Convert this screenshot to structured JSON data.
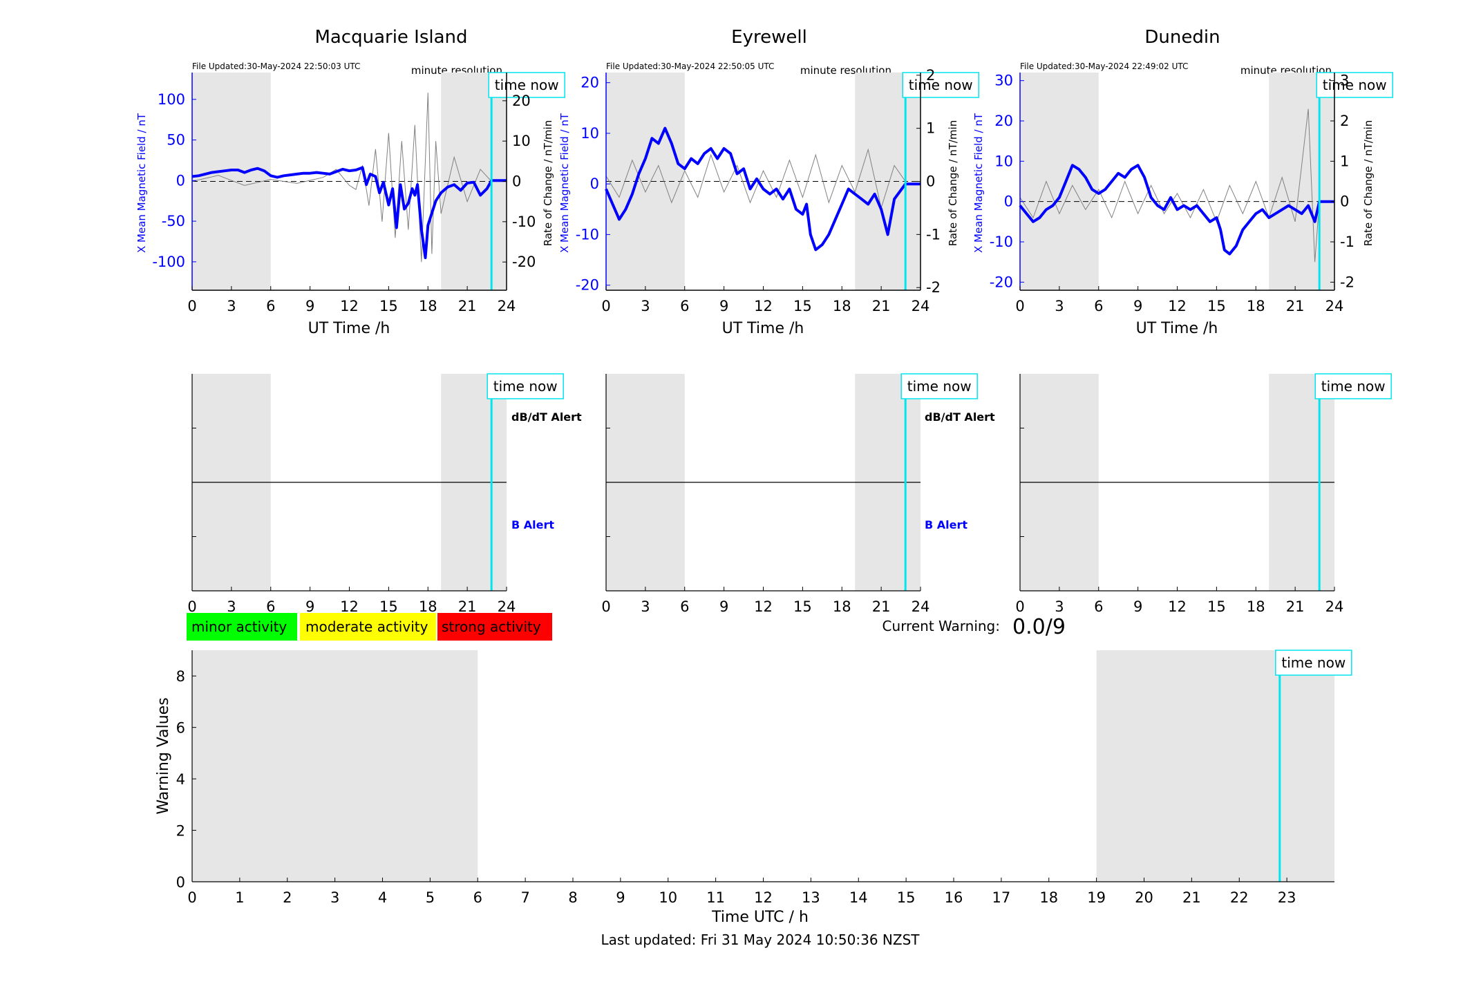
{
  "colors": {
    "left_axis": "#0000ff",
    "rate_series": "#808080",
    "field_series": "#0000ff",
    "time_now": "#00e5ee",
    "night_shade": "#e6e6e6",
    "minor": "#00ff00",
    "moderate": "#ffff00",
    "strong": "#ff0000"
  },
  "stations": [
    {
      "title": "Macquarie Island",
      "file_updated": "File Updated:30-May-2024 22:50:03 UTC",
      "resolution": "minute resolution",
      "time_now_label": "time now",
      "dbdt_alert_label": "dB/dT Alert",
      "b_alert_label": "B Alert"
    },
    {
      "title": "Eyrewell",
      "file_updated": "File Updated:30-May-2024 22:50:05 UTC",
      "resolution": "minute resolution",
      "time_now_label": "time now",
      "dbdt_alert_label": "dB/dT Alert",
      "b_alert_label": "B Alert"
    },
    {
      "title": "Dunedin",
      "file_updated": "File Updated:30-May-2024 22:49:02 UTC",
      "resolution": "minute resolution",
      "time_now_label": "time now",
      "dbdt_alert_label": "",
      "b_alert_label": ""
    }
  ],
  "legend": {
    "minor": "minor activity",
    "moderate": "moderate activity",
    "strong": "strong activity"
  },
  "current_warning": {
    "label": "Current Warning:",
    "value": "0.0/9"
  },
  "footer": {
    "last_updated": "Last updated: Fri 31 May 2024 10:50:36 NZST"
  },
  "chart_data": [
    {
      "type": "line",
      "station": "Macquarie Island",
      "xlabel": "UT Time /h",
      "ylabel_left": "X Mean Magnetic Field / nT",
      "ylabel_right": "Rate of Change / nT/min",
      "xlim": [
        0,
        24
      ],
      "xticks": [
        0,
        3,
        6,
        9,
        12,
        15,
        18,
        21,
        24
      ],
      "ylim_left": [
        -135,
        133
      ],
      "yticks_left": [
        -100,
        -50,
        0,
        50,
        100
      ],
      "ylim_right": [
        -27,
        27
      ],
      "yticks_right": [
        -20,
        -10,
        0,
        10,
        20
      ],
      "night_shading_h": [
        [
          0,
          6
        ],
        [
          19,
          24
        ]
      ],
      "time_now_h": 22.85,
      "field_series": [
        [
          0,
          5
        ],
        [
          0.5,
          6
        ],
        [
          1,
          8
        ],
        [
          1.5,
          10
        ],
        [
          2,
          11
        ],
        [
          2.5,
          12
        ],
        [
          3,
          13
        ],
        [
          3.5,
          13
        ],
        [
          4,
          10
        ],
        [
          4.5,
          13
        ],
        [
          5,
          15
        ],
        [
          5.5,
          12
        ],
        [
          6,
          6
        ],
        [
          6.5,
          4
        ],
        [
          7,
          6
        ],
        [
          7.5,
          7
        ],
        [
          8,
          8
        ],
        [
          8.5,
          9
        ],
        [
          9,
          9
        ],
        [
          9.5,
          10
        ],
        [
          10,
          9
        ],
        [
          10.5,
          8
        ],
        [
          11,
          11
        ],
        [
          11.5,
          14
        ],
        [
          12,
          12
        ],
        [
          12.5,
          13
        ],
        [
          13,
          16
        ],
        [
          13.3,
          -5
        ],
        [
          13.6,
          8
        ],
        [
          14,
          5
        ],
        [
          14.3,
          -15
        ],
        [
          14.6,
          -2
        ],
        [
          15,
          -30
        ],
        [
          15.3,
          -10
        ],
        [
          15.6,
          -58
        ],
        [
          15.9,
          -5
        ],
        [
          16.2,
          -35
        ],
        [
          16.5,
          -28
        ],
        [
          16.8,
          -10
        ],
        [
          17,
          -18
        ],
        [
          17.2,
          -5
        ],
        [
          17.5,
          -60
        ],
        [
          17.8,
          -95
        ],
        [
          18,
          -55
        ],
        [
          18.3,
          -40
        ],
        [
          18.6,
          -25
        ],
        [
          19,
          -15
        ],
        [
          19.5,
          -8
        ],
        [
          20,
          -5
        ],
        [
          20.5,
          -12
        ],
        [
          21,
          -3
        ],
        [
          21.5,
          -2
        ],
        [
          22,
          -18
        ],
        [
          22.5,
          -10
        ],
        [
          22.85,
          0
        ],
        [
          24,
          0
        ]
      ],
      "rate_series": [
        [
          0,
          0
        ],
        [
          2,
          1.5
        ],
        [
          4,
          -1
        ],
        [
          6,
          0.5
        ],
        [
          8,
          -0.5
        ],
        [
          10,
          1
        ],
        [
          11,
          3
        ],
        [
          12,
          -1
        ],
        [
          12.5,
          -2
        ],
        [
          13,
          4
        ],
        [
          13.5,
          -6
        ],
        [
          14,
          8
        ],
        [
          14.5,
          -10
        ],
        [
          15,
          12
        ],
        [
          15.5,
          -14
        ],
        [
          16,
          10
        ],
        [
          16.5,
          -12
        ],
        [
          17,
          14
        ],
        [
          17.5,
          -20
        ],
        [
          18,
          22
        ],
        [
          18.3,
          -18
        ],
        [
          18.6,
          10
        ],
        [
          19,
          -8
        ],
        [
          20,
          6
        ],
        [
          21,
          -5
        ],
        [
          22,
          3
        ],
        [
          22.85,
          0
        ]
      ]
    },
    {
      "type": "line",
      "station": "Eyrewell",
      "xlabel": "UT Time /h",
      "ylabel_left": "X Mean Magnetic Field / nT",
      "ylabel_right": "Rate of Change / nT/min",
      "xlim": [
        0,
        24
      ],
      "xticks": [
        0,
        3,
        6,
        9,
        12,
        15,
        18,
        21,
        24
      ],
      "ylim_left": [
        -21,
        22
      ],
      "yticks_left": [
        -20,
        -10,
        0,
        10,
        20
      ],
      "ylim_right": [
        -2.05,
        2.05
      ],
      "yticks_right": [
        -2,
        -1,
        0,
        1,
        2
      ],
      "night_shading_h": [
        [
          0,
          6
        ],
        [
          19,
          24
        ]
      ],
      "time_now_h": 22.85,
      "field_series": [
        [
          0,
          -1
        ],
        [
          0.5,
          -4
        ],
        [
          1,
          -7
        ],
        [
          1.5,
          -5
        ],
        [
          2,
          -2
        ],
        [
          2.5,
          2
        ],
        [
          3,
          5
        ],
        [
          3.5,
          9
        ],
        [
          4,
          8
        ],
        [
          4.5,
          11
        ],
        [
          5,
          8
        ],
        [
          5.5,
          4
        ],
        [
          6,
          3
        ],
        [
          6.5,
          5
        ],
        [
          7,
          4
        ],
        [
          7.5,
          6
        ],
        [
          8,
          7
        ],
        [
          8.5,
          5
        ],
        [
          9,
          7
        ],
        [
          9.5,
          6
        ],
        [
          10,
          2
        ],
        [
          10.5,
          3
        ],
        [
          11,
          -1
        ],
        [
          11.5,
          1
        ],
        [
          12,
          -1
        ],
        [
          12.5,
          -2
        ],
        [
          13,
          -1
        ],
        [
          13.5,
          -3
        ],
        [
          14,
          -1
        ],
        [
          14.5,
          -5
        ],
        [
          15,
          -6
        ],
        [
          15.3,
          -4
        ],
        [
          15.6,
          -10
        ],
        [
          16,
          -13
        ],
        [
          16.5,
          -12
        ],
        [
          17,
          -10
        ],
        [
          17.5,
          -7
        ],
        [
          18,
          -4
        ],
        [
          18.5,
          -1
        ],
        [
          19,
          -2
        ],
        [
          19.5,
          -3
        ],
        [
          20,
          -4
        ],
        [
          20.5,
          -2
        ],
        [
          21,
          -5
        ],
        [
          21.5,
          -10
        ],
        [
          22,
          -3
        ],
        [
          22.85,
          0
        ],
        [
          24,
          0
        ]
      ],
      "rate_series": [
        [
          0,
          0.1
        ],
        [
          1,
          -0.3
        ],
        [
          2,
          0.4
        ],
        [
          3,
          -0.2
        ],
        [
          4,
          0.3
        ],
        [
          5,
          -0.4
        ],
        [
          6,
          0.2
        ],
        [
          7,
          -0.3
        ],
        [
          8,
          0.5
        ],
        [
          9,
          -0.2
        ],
        [
          10,
          0.3
        ],
        [
          11,
          -0.4
        ],
        [
          12,
          0.2
        ],
        [
          13,
          -0.3
        ],
        [
          14,
          0.4
        ],
        [
          15,
          -0.3
        ],
        [
          16,
          0.5
        ],
        [
          17,
          -0.4
        ],
        [
          18,
          0.3
        ],
        [
          19,
          -0.2
        ],
        [
          20,
          0.6
        ],
        [
          21,
          -0.5
        ],
        [
          22,
          0.3
        ],
        [
          22.85,
          0
        ]
      ]
    },
    {
      "type": "line",
      "station": "Dunedin",
      "xlabel": "UT Time /h",
      "ylabel_left": "X Mean Magnetic Field / nT",
      "ylabel_right": "Rate of Change / nT/min",
      "xlim": [
        0,
        24
      ],
      "xticks": [
        0,
        3,
        6,
        9,
        12,
        15,
        18,
        21,
        24
      ],
      "ylim_left": [
        -22,
        32
      ],
      "yticks_left": [
        -20,
        -10,
        0,
        10,
        20,
        30
      ],
      "ylim_right": [
        -2.2,
        3.2
      ],
      "yticks_right": [
        -2,
        -1,
        0,
        1,
        2,
        3
      ],
      "night_shading_h": [
        [
          0,
          6
        ],
        [
          19,
          24
        ]
      ],
      "time_now_h": 22.85,
      "field_series": [
        [
          0,
          -1
        ],
        [
          0.5,
          -3
        ],
        [
          1,
          -5
        ],
        [
          1.5,
          -4
        ],
        [
          2,
          -2
        ],
        [
          2.5,
          -1
        ],
        [
          3,
          1
        ],
        [
          3.5,
          5
        ],
        [
          4,
          9
        ],
        [
          4.5,
          8
        ],
        [
          5,
          6
        ],
        [
          5.5,
          3
        ],
        [
          6,
          2
        ],
        [
          6.5,
          3
        ],
        [
          7,
          5
        ],
        [
          7.5,
          7
        ],
        [
          8,
          6
        ],
        [
          8.5,
          8
        ],
        [
          9,
          9
        ],
        [
          9.5,
          6
        ],
        [
          10,
          1
        ],
        [
          10.5,
          -1
        ],
        [
          11,
          -2
        ],
        [
          11.5,
          1
        ],
        [
          12,
          -2
        ],
        [
          12.5,
          -1
        ],
        [
          13,
          -2
        ],
        [
          13.5,
          -1
        ],
        [
          14,
          -3
        ],
        [
          14.5,
          -5
        ],
        [
          15,
          -4
        ],
        [
          15.3,
          -7
        ],
        [
          15.6,
          -12
        ],
        [
          16,
          -13
        ],
        [
          16.5,
          -11
        ],
        [
          17,
          -7
        ],
        [
          17.5,
          -5
        ],
        [
          18,
          -3
        ],
        [
          18.5,
          -2
        ],
        [
          19,
          -4
        ],
        [
          19.5,
          -3
        ],
        [
          20,
          -2
        ],
        [
          20.5,
          -1
        ],
        [
          21,
          -2
        ],
        [
          21.5,
          -3
        ],
        [
          22,
          -1
        ],
        [
          22.5,
          -5
        ],
        [
          22.85,
          0
        ],
        [
          24,
          0
        ]
      ],
      "rate_series": [
        [
          0,
          0.1
        ],
        [
          1,
          -0.4
        ],
        [
          2,
          0.5
        ],
        [
          3,
          -0.3
        ],
        [
          4,
          0.4
        ],
        [
          5,
          -0.2
        ],
        [
          6,
          0.3
        ],
        [
          7,
          -0.4
        ],
        [
          8,
          0.5
        ],
        [
          9,
          -0.3
        ],
        [
          10,
          0.4
        ],
        [
          11,
          -0.3
        ],
        [
          12,
          0.2
        ],
        [
          13,
          -0.4
        ],
        [
          14,
          0.3
        ],
        [
          15,
          -0.5
        ],
        [
          16,
          0.4
        ],
        [
          17,
          -0.3
        ],
        [
          18,
          0.5
        ],
        [
          19,
          -0.4
        ],
        [
          20,
          0.6
        ],
        [
          21,
          -0.5
        ],
        [
          22,
          2.3
        ],
        [
          22.5,
          -1.5
        ],
        [
          22.85,
          0
        ]
      ]
    },
    {
      "type": "bar",
      "chart": "warning",
      "xlabel": "Time UTC / h",
      "ylabel": "Warning Values",
      "xlim": [
        0,
        24
      ],
      "xticks": [
        0,
        1,
        2,
        3,
        4,
        5,
        6,
        7,
        8,
        9,
        10,
        11,
        12,
        13,
        14,
        15,
        16,
        17,
        18,
        19,
        20,
        21,
        22,
        23
      ],
      "ylim": [
        0,
        9
      ],
      "yticks": [
        0,
        2,
        4,
        6,
        8
      ],
      "night_shading_h": [
        [
          0,
          6
        ],
        [
          19,
          24
        ]
      ],
      "time_now_h": 22.85,
      "time_now_label": "time now",
      "values": []
    }
  ]
}
